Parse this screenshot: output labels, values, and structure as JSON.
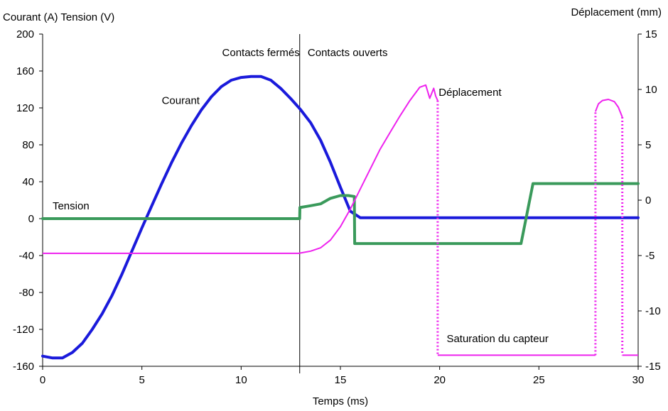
{
  "chart_data": {
    "type": "line",
    "left_axis_label": "Courant (A) Tension (V)",
    "right_axis_label": "Déplacement (mm)",
    "xlabel": "Temps (ms)",
    "xlim": [
      0,
      30
    ],
    "ylim_left": [
      -160,
      200
    ],
    "ylim_right": [
      -15,
      15
    ],
    "x_ticks": [
      "0",
      "5",
      "10",
      "15",
      "20",
      "25",
      "30"
    ],
    "y_left_ticks": [
      "200",
      "160",
      "120",
      "80",
      "40",
      "0",
      "-40",
      "-80",
      "-120",
      "-160"
    ],
    "y_right_ticks": [
      "15",
      "10",
      "5",
      "0",
      "-5",
      "-10",
      "-15"
    ],
    "grid": false,
    "annotations": [
      {
        "text": "Contacts fermés",
        "x": 12.95,
        "y": 180,
        "anchor": "end"
      },
      {
        "text": "Contacts ouverts",
        "x": 13.35,
        "y": 180,
        "anchor": "start"
      },
      {
        "text": "Courant",
        "x": 6.0,
        "y": 128,
        "anchor": "start"
      },
      {
        "text": "Déplacement",
        "x": 19.95,
        "y": 137,
        "anchor": "start"
      },
      {
        "text": "Tension",
        "x": 0.5,
        "y": 14,
        "anchor": "start"
      },
      {
        "text": "Saturation du capteur",
        "x": 20.35,
        "y": -130,
        "anchor": "start"
      }
    ],
    "contact_line_x": 12.95,
    "series": [
      {
        "name": "Courant",
        "axis": "left",
        "color": "#1a1adb",
        "x": [
          0,
          0.5,
          1.0,
          1.5,
          2.0,
          2.5,
          3.0,
          3.5,
          4.0,
          4.5,
          5.0,
          5.5,
          6.0,
          6.5,
          7.0,
          7.5,
          8.0,
          8.5,
          9.0,
          9.5,
          10.0,
          10.5,
          11.0,
          11.5,
          12.0,
          12.5,
          13.0,
          13.5,
          14.0,
          14.5,
          15.0,
          15.5,
          16.0,
          17.0,
          18.0,
          19.0,
          20.0,
          21.0,
          22.0,
          23.0,
          24.0,
          25.0,
          26.0,
          27.0,
          28.0,
          29.0,
          30.0
        ],
        "y": [
          -149,
          -151,
          -151,
          -145,
          -135,
          -120,
          -103,
          -83,
          -60,
          -35,
          -10,
          14,
          38,
          61,
          82,
          101,
          118,
          132,
          143,
          150,
          153,
          154,
          154,
          150,
          141,
          130,
          118,
          104,
          85,
          61,
          34,
          8,
          1,
          1,
          1,
          1,
          1,
          1,
          1,
          1,
          1,
          1,
          1,
          1,
          1,
          1,
          1
        ]
      },
      {
        "name": "Tension",
        "axis": "left",
        "color": "#3a9a5b",
        "x": [
          0,
          12.95,
          12.96,
          13.5,
          14.0,
          14.5,
          15.0,
          15.4,
          15.7,
          15.72,
          16.0,
          17.0,
          18.0,
          19.0,
          20.0,
          21.0,
          22.0,
          23.0,
          24.0,
          24.1,
          24.7,
          25.0,
          26.0,
          27.0,
          28.0,
          29.0,
          30.0
        ],
        "y": [
          0,
          0,
          12,
          14,
          16,
          22,
          25,
          25,
          24,
          -27,
          -27,
          -27,
          -27,
          -27,
          -27,
          -27,
          -27,
          -27,
          -27,
          -27,
          38,
          38,
          38,
          38,
          38,
          38,
          38
        ]
      },
      {
        "name": "Déplacement",
        "axis": "right",
        "color": "#ee22ee",
        "segments": [
          {
            "x": [
              0,
              5,
              10,
              12.9,
              13.5,
              14.0,
              14.5,
              15.0,
              15.5,
              16.0,
              16.5,
              17.0,
              17.5,
              18.0,
              18.5,
              19.0,
              19.3,
              19.5,
              19.7,
              19.8,
              19.9
            ],
            "y": [
              -4.8,
              -4.8,
              -4.8,
              -4.8,
              -4.6,
              -4.3,
              -3.6,
              -2.4,
              -0.8,
              1.0,
              2.8,
              4.6,
              6.1,
              7.6,
              9.0,
              10.2,
              10.4,
              9.2,
              10.1,
              9.4,
              9.0
            ],
            "style": "line"
          },
          {
            "x": [
              19.9,
              19.9
            ],
            "y": [
              9.0,
              -14.0
            ],
            "style": "dotted"
          },
          {
            "x": [
              19.9,
              27.85
            ],
            "y": [
              -14.0,
              -14.0
            ],
            "style": "line"
          },
          {
            "x": [
              27.85,
              27.85
            ],
            "y": [
              -14.0,
              8.0
            ],
            "style": "dotted"
          },
          {
            "x": [
              27.85,
              28.0,
              28.2,
              28.5,
              28.8,
              29.0,
              29.2
            ],
            "y": [
              8.0,
              8.7,
              9.0,
              9.1,
              8.9,
              8.4,
              7.5
            ],
            "style": "line"
          },
          {
            "x": [
              29.2,
              29.2
            ],
            "y": [
              7.5,
              -14.0
            ],
            "style": "dotted"
          },
          {
            "x": [
              29.2,
              30.0
            ],
            "y": [
              -14.0,
              -14.0
            ],
            "style": "line"
          }
        ]
      }
    ]
  }
}
